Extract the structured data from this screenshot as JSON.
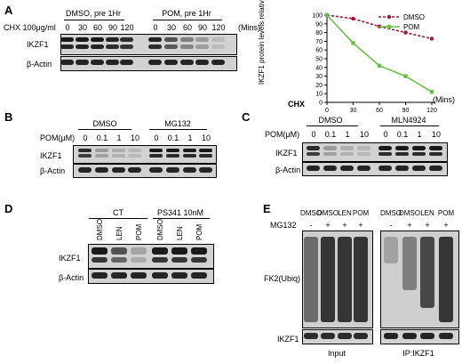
{
  "panels": {
    "A": {
      "label": "A",
      "group1": "DMSO, pre 1Hr",
      "group2": "POM, pre 1Hr",
      "chx_label": "CHX 100μg/ml",
      "times": [
        "0",
        "30",
        "60",
        "90",
        "120",
        "0",
        "30",
        "60",
        "90",
        "120"
      ],
      "units": "(Mins)",
      "rows": [
        "IKZF1",
        "β-Actin"
      ]
    },
    "B": {
      "label": "B",
      "group1": "DMSO",
      "group2": "MG132",
      "pom_label": "POM(μM)",
      "doses": [
        "0",
        "0.1",
        "1",
        "10",
        "0",
        "0.1",
        "1",
        "10"
      ],
      "rows": [
        "IKZF1",
        "β-Actin"
      ]
    },
    "C": {
      "label": "C",
      "group1": "DMSO",
      "group2": "MLN4924",
      "pom_label": "POM(μM)",
      "doses": [
        "0",
        "0.1",
        "1",
        "10",
        "0",
        "0.1",
        "1",
        "10"
      ],
      "rows": [
        "IKZF1",
        "β-Actin"
      ]
    },
    "D": {
      "label": "D",
      "group1": "CT",
      "group2": "PS341 10nM",
      "lanes": [
        "DMSO",
        "LEN",
        "POM",
        "DMSO",
        "LEN",
        "POM"
      ],
      "rows": [
        "IKZF1",
        "β-Actin"
      ]
    },
    "E": {
      "label": "E",
      "lanes_left": [
        "DMSO",
        "DMSO",
        "LEN",
        "POM"
      ],
      "lanes_right": [
        "DMSO",
        "DMSO",
        "LEN",
        "POM"
      ],
      "mg132_label": "MG132",
      "mg132_left": [
        "-",
        "+",
        "+",
        "+"
      ],
      "mg132_right": [
        "-",
        "+",
        "+",
        "+"
      ],
      "fk2_label": "FK2(Ubiq)",
      "ikzf1_label": "IKZF1",
      "input_label": "Input",
      "ip_label": "IP:IKZF1"
    }
  },
  "chart_data": {
    "type": "line",
    "x": [
      0,
      30,
      60,
      90,
      120
    ],
    "series": [
      {
        "name": "DMSO",
        "values": [
          100,
          96,
          87,
          80,
          73
        ],
        "color": "#a0153e",
        "style": "dashed"
      },
      {
        "name": "POM",
        "values": [
          100,
          68,
          42,
          30,
          12
        ],
        "color": "#6abf45",
        "style": "solid"
      }
    ],
    "xlabel": "CHX",
    "xunits": "(Mins)",
    "ylabel": "IKZF1 protein levels relative control %",
    "yticks": [
      "0",
      "10",
      "20",
      "30",
      "40",
      "50",
      "60",
      "70",
      "80",
      "90",
      "100"
    ],
    "xticks": [
      "0",
      "30",
      "60",
      "90",
      "120"
    ],
    "ylim": [
      0,
      100
    ],
    "xlim": [
      0,
      120
    ],
    "legend": "top-right"
  }
}
